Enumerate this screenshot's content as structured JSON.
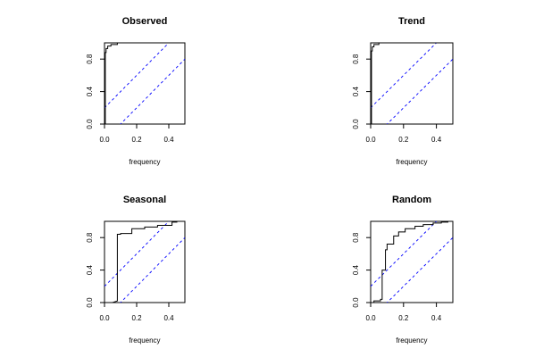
{
  "chart_data": [
    {
      "type": "line",
      "title": "Observed",
      "xlabel": "frequency",
      "ylabel": "",
      "xlim": [
        0,
        0.5
      ],
      "ylim": [
        0,
        1
      ],
      "xticks": [
        "0.0",
        "0.2",
        "0.4"
      ],
      "yticks": [
        "0.0",
        "0.4",
        "0.8"
      ],
      "series": [
        {
          "values": [
            [
              0,
              0
            ],
            [
              0.005,
              0
            ],
            [
              0.005,
              0.88
            ],
            [
              0.01,
              0.88
            ],
            [
              0.01,
              0.93
            ],
            [
              0.02,
              0.93
            ],
            [
              0.02,
              0.96
            ],
            [
              0.04,
              0.96
            ],
            [
              0.04,
              0.98
            ],
            [
              0.08,
              0.98
            ],
            [
              0.08,
              1.0
            ],
            [
              0.5,
              1.0
            ]
          ]
        }
      ],
      "bands": {
        "offset": 0.2,
        "slope": 2,
        "color": "#0000ff"
      }
    },
    {
      "type": "line",
      "title": "Trend",
      "xlabel": "frequency",
      "ylabel": "",
      "xlim": [
        0,
        0.5
      ],
      "ylim": [
        0,
        1
      ],
      "xticks": [
        "0.0",
        "0.2",
        "0.4"
      ],
      "yticks": [
        "0.0",
        "0.4",
        "0.8"
      ],
      "series": [
        {
          "values": [
            [
              0,
              0
            ],
            [
              0.005,
              0
            ],
            [
              0.005,
              0.9
            ],
            [
              0.01,
              0.9
            ],
            [
              0.01,
              0.95
            ],
            [
              0.02,
              0.95
            ],
            [
              0.02,
              0.98
            ],
            [
              0.05,
              0.98
            ],
            [
              0.05,
              1.0
            ],
            [
              0.5,
              1.0
            ]
          ]
        }
      ],
      "bands": {
        "offset": 0.2,
        "slope": 2,
        "color": "#0000ff"
      }
    },
    {
      "type": "line",
      "title": "Seasonal",
      "xlabel": "frequency",
      "ylabel": "",
      "xlim": [
        0,
        0.5
      ],
      "ylim": [
        0,
        1
      ],
      "xticks": [
        "0.0",
        "0.2",
        "0.4"
      ],
      "yticks": [
        "0.0",
        "0.4",
        "0.8"
      ],
      "series": [
        {
          "values": [
            [
              0,
              0
            ],
            [
              0.05,
              0
            ],
            [
              0.08,
              0.02
            ],
            [
              0.08,
              0.84
            ],
            [
              0.1,
              0.84
            ],
            [
              0.1,
              0.85
            ],
            [
              0.17,
              0.85
            ],
            [
              0.17,
              0.91
            ],
            [
              0.25,
              0.91
            ],
            [
              0.25,
              0.93
            ],
            [
              0.33,
              0.93
            ],
            [
              0.33,
              0.95
            ],
            [
              0.42,
              0.95
            ],
            [
              0.42,
              0.99
            ],
            [
              0.45,
              0.99
            ],
            [
              0.45,
              1.0
            ],
            [
              0.5,
              1.0
            ]
          ]
        }
      ],
      "bands": {
        "offset": 0.2,
        "slope": 2,
        "color": "#0000ff"
      }
    },
    {
      "type": "line",
      "title": "Random",
      "xlabel": "frequency",
      "ylabel": "",
      "xlim": [
        0,
        0.5
      ],
      "ylim": [
        0,
        1
      ],
      "xticks": [
        "0.0",
        "0.2",
        "0.4"
      ],
      "yticks": [
        "0.0",
        "0.4",
        "0.8"
      ],
      "series": [
        {
          "values": [
            [
              0,
              0
            ],
            [
              0.02,
              0
            ],
            [
              0.02,
              0.02
            ],
            [
              0.06,
              0.02
            ],
            [
              0.06,
              0.04
            ],
            [
              0.07,
              0.04
            ],
            [
              0.07,
              0.4
            ],
            [
              0.09,
              0.4
            ],
            [
              0.09,
              0.65
            ],
            [
              0.1,
              0.65
            ],
            [
              0.1,
              0.72
            ],
            [
              0.14,
              0.72
            ],
            [
              0.14,
              0.82
            ],
            [
              0.17,
              0.82
            ],
            [
              0.17,
              0.87
            ],
            [
              0.21,
              0.87
            ],
            [
              0.21,
              0.91
            ],
            [
              0.27,
              0.91
            ],
            [
              0.27,
              0.94
            ],
            [
              0.32,
              0.94
            ],
            [
              0.32,
              0.96
            ],
            [
              0.38,
              0.96
            ],
            [
              0.38,
              0.98
            ],
            [
              0.43,
              0.98
            ],
            [
              0.43,
              0.99
            ],
            [
              0.47,
              0.99
            ],
            [
              0.47,
              1.0
            ],
            [
              0.5,
              1.0
            ]
          ]
        }
      ],
      "bands": {
        "offset": 0.2,
        "slope": 2,
        "color": "#0000ff"
      }
    }
  ]
}
